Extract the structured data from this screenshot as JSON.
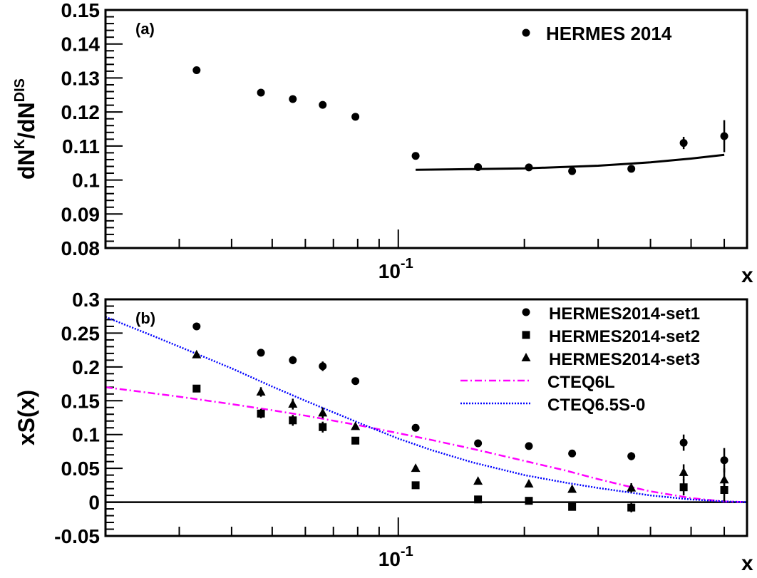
{
  "chart_data": [
    {
      "type": "scatter",
      "panel_label": "(a)",
      "ylabel": {
        "base": "dN",
        "sup1": "K",
        "mid": "/dN",
        "sup2": "DIS"
      },
      "xlabel": "x",
      "x_scale": "log",
      "xlim": [
        0.02,
        0.68
      ],
      "ylim": [
        0.08,
        0.15
      ],
      "yticks": [
        0.08,
        0.09,
        0.1,
        0.11,
        0.12,
        0.13,
        0.14,
        0.15
      ],
      "ytick_labels": [
        "0.08",
        "0.09",
        "0.1",
        "0.11",
        "0.12",
        "0.13",
        "0.14",
        "0.15"
      ],
      "xtick_label": {
        "base": "10",
        "exp": "-1",
        "value": 0.1
      },
      "legend_position": "top-right",
      "series": [
        {
          "name": "HERMES 2014",
          "marker": "circle",
          "x": [
            0.033,
            0.047,
            0.056,
            0.066,
            0.079,
            0.11,
            0.155,
            0.205,
            0.26,
            0.36,
            0.48,
            0.6
          ],
          "y": [
            0.1323,
            0.1257,
            0.1238,
            0.1221,
            0.1186,
            0.1071,
            0.1038,
            0.1037,
            0.1026,
            0.1033,
            0.1109,
            0.1129
          ],
          "yerr": [
            0.0005,
            0.0008,
            0.0009,
            0.0009,
            0.0006,
            0.0005,
            0.0005,
            0.0006,
            0.0006,
            0.0008,
            0.0018,
            0.0047
          ]
        }
      ],
      "curve": {
        "x": [
          0.11,
          0.2,
          0.3,
          0.4,
          0.5,
          0.6
        ],
        "y": [
          0.103,
          0.1034,
          0.1042,
          0.1052,
          0.1063,
          0.1074
        ]
      }
    },
    {
      "type": "scatter",
      "panel_label": "(b)",
      "ylabel": "xS(x)",
      "xlabel": "x",
      "x_scale": "log",
      "xlim": [
        0.02,
        0.68
      ],
      "ylim": [
        -0.05,
        0.3
      ],
      "yticks": [
        -0.05,
        0,
        0.05,
        0.1,
        0.15,
        0.2,
        0.25,
        0.3
      ],
      "ytick_labels": [
        "-0.05",
        "0",
        "0.05",
        "0.1",
        "0.15",
        "0.2",
        "0.25",
        "0.3"
      ],
      "xtick_label": {
        "base": "10",
        "exp": "-1",
        "value": 0.1
      },
      "legend_position": "top-right",
      "series": [
        {
          "name": "HERMES2014-set1",
          "marker": "circle",
          "x": [
            0.033,
            0.047,
            0.056,
            0.066,
            0.079,
            0.11,
            0.155,
            0.205,
            0.26,
            0.36,
            0.48,
            0.6
          ],
          "y": [
            0.26,
            0.221,
            0.21,
            0.201,
            0.179,
            0.11,
            0.087,
            0.083,
            0.072,
            0.068,
            0.088,
            0.062
          ],
          "yerr": [
            0.003,
            0.005,
            0.006,
            0.007,
            0.004,
            0.003,
            0.003,
            0.003,
            0.004,
            0.006,
            0.012,
            0.018
          ]
        },
        {
          "name": "HERMES2014-set2",
          "marker": "square",
          "x": [
            0.033,
            0.047,
            0.056,
            0.066,
            0.079,
            0.11,
            0.155,
            0.205,
            0.26,
            0.36,
            0.48,
            0.6
          ],
          "y": [
            0.168,
            0.131,
            0.121,
            0.111,
            0.091,
            0.025,
            0.004,
            0.002,
            -0.007,
            -0.008,
            0.022,
            0.018
          ],
          "yerr": [
            0.003,
            0.007,
            0.008,
            0.008,
            0.004,
            0.003,
            0.003,
            0.003,
            0.004,
            0.007,
            0.012,
            0.017
          ]
        },
        {
          "name": "HERMES2014-set3",
          "marker": "triangle",
          "x": [
            0.033,
            0.047,
            0.056,
            0.066,
            0.079,
            0.11,
            0.155,
            0.205,
            0.26,
            0.36,
            0.48,
            0.6
          ],
          "y": [
            0.218,
            0.163,
            0.145,
            0.132,
            0.112,
            0.05,
            0.031,
            0.027,
            0.019,
            0.021,
            0.044,
            0.033
          ],
          "yerr": [
            0.003,
            0.007,
            0.008,
            0.008,
            0.004,
            0.003,
            0.003,
            0.003,
            0.004,
            0.007,
            0.012,
            0.017
          ]
        }
      ],
      "curves": [
        {
          "name": "CTEQ6L",
          "color": "#ff00ff",
          "style": "dash-dot",
          "x": [
            0.02,
            0.03,
            0.04,
            0.05,
            0.06,
            0.08,
            0.1,
            0.12,
            0.15,
            0.2,
            0.25,
            0.3,
            0.35,
            0.4,
            0.5,
            0.6,
            0.68
          ],
          "y": [
            0.17,
            0.156,
            0.145,
            0.136,
            0.128,
            0.114,
            0.102,
            0.092,
            0.079,
            0.061,
            0.047,
            0.034,
            0.024,
            0.016,
            0.006,
            0.001,
            0.0
          ]
        },
        {
          "name": "CTEQ6.5S-0",
          "color": "#0000ff",
          "style": "dotted",
          "x": [
            0.02,
            0.025,
            0.03,
            0.04,
            0.05,
            0.06,
            0.08,
            0.1,
            0.12,
            0.15,
            0.2,
            0.25,
            0.3,
            0.35,
            0.4,
            0.5,
            0.6,
            0.68
          ],
          "y": [
            0.274,
            0.25,
            0.23,
            0.198,
            0.171,
            0.15,
            0.118,
            0.094,
            0.077,
            0.059,
            0.04,
            0.029,
            0.021,
            0.015,
            0.01,
            0.004,
            0.001,
            0.0
          ]
        }
      ]
    }
  ]
}
